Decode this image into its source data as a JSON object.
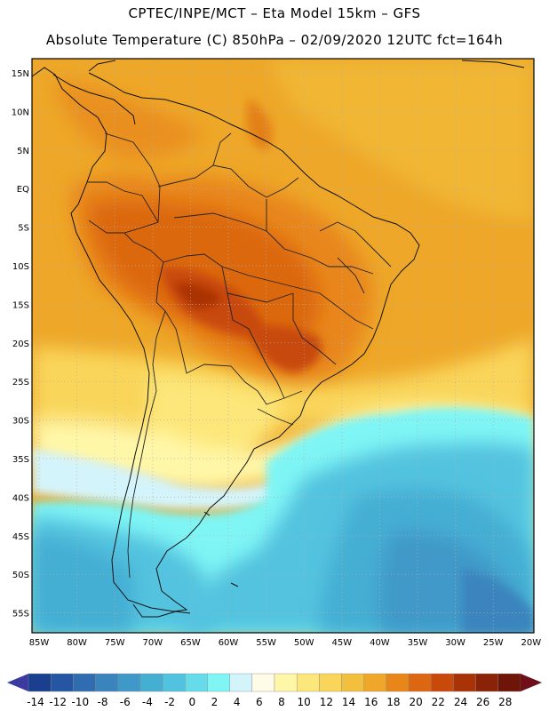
{
  "header": {
    "line1": "CPTEC/INPE/MCT –  Eta Model 15km – GFS",
    "line2": "Absolute Temperature (C) 850hPa – 02/09/2020 12UTC fct=164h"
  },
  "map": {
    "lat_labels": [
      "15N",
      "10N",
      "5N",
      "EQ",
      "5S",
      "10S",
      "15S",
      "20S",
      "25S",
      "30S",
      "35S",
      "40S",
      "45S",
      "50S",
      "55S"
    ],
    "lon_labels": [
      "85W",
      "80W",
      "75W",
      "70W",
      "65W",
      "60W",
      "55W",
      "50W",
      "45W",
      "40W",
      "35W",
      "30W",
      "25W",
      "20W"
    ]
  },
  "colorbar": {
    "labels": [
      "-14",
      "-12",
      "-10",
      "-8",
      "-6",
      "-4",
      "-2",
      "0",
      "2",
      "4",
      "6",
      "8",
      "10",
      "12",
      "14",
      "16",
      "18",
      "20",
      "22",
      "24",
      "26",
      "28"
    ],
    "colors": [
      "#1b3f8f",
      "#2456a2",
      "#2f6db0",
      "#3a84bd",
      "#3f99c8",
      "#45aed3",
      "#52c3df",
      "#66dceb",
      "#7ff5f5",
      "#d4f4fb",
      "#fffbe6",
      "#fff7a8",
      "#fde77a",
      "#f9d55a",
      "#f3c03e",
      "#eea728",
      "#e8861a",
      "#dc6710",
      "#c8490a",
      "#a93206",
      "#8a2208",
      "#6e1408"
    ],
    "low_cap": "#3a3aa0",
    "high_cap": "#6e0f1a"
  }
}
